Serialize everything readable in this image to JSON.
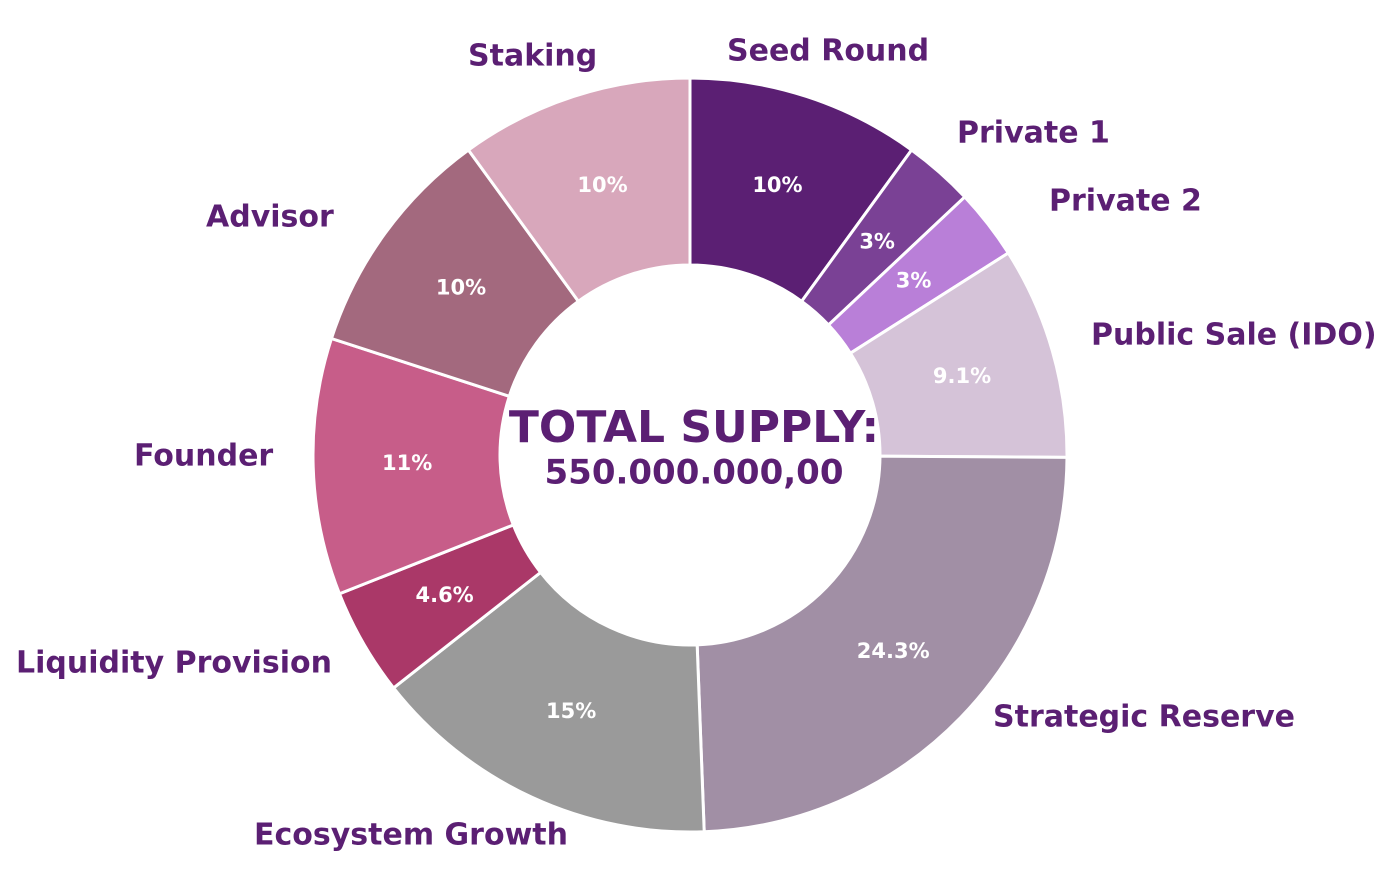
{
  "chart_data": {
    "type": "pie",
    "center_title": "TOTAL SUPPLY:",
    "center_value": "550.000.000,00",
    "slices": [
      {
        "name": "Seed Round",
        "value": 10,
        "label": "10%",
        "color": "#5b1f73"
      },
      {
        "name": "Private 1",
        "value": 3,
        "label": "3%",
        "color": "#7a4195"
      },
      {
        "name": "Private 2",
        "value": 3,
        "label": "3%",
        "color": "#b97fd8"
      },
      {
        "name": "Public Sale (IDO)",
        "value": 9.1,
        "label": "9.1%",
        "color": "#d5c3d8"
      },
      {
        "name": "Strategic Reserve",
        "value": 24.3,
        "label": "24.3%",
        "color": "#a18fa5"
      },
      {
        "name": "Ecosystem Growth",
        "value": 15,
        "label": "15%",
        "color": "#9a9a9a"
      },
      {
        "name": "Liquidity Provision",
        "value": 4.6,
        "label": "4.6%",
        "color": "#aa3868"
      },
      {
        "name": "Founder",
        "value": 11,
        "label": "11%",
        "color": "#c75d89"
      },
      {
        "name": "Advisor",
        "value": 10,
        "label": "10%",
        "color": "#a3697e"
      },
      {
        "name": "Staking",
        "value": 10,
        "label": "10%",
        "color": "#d8a7bb"
      }
    ]
  }
}
